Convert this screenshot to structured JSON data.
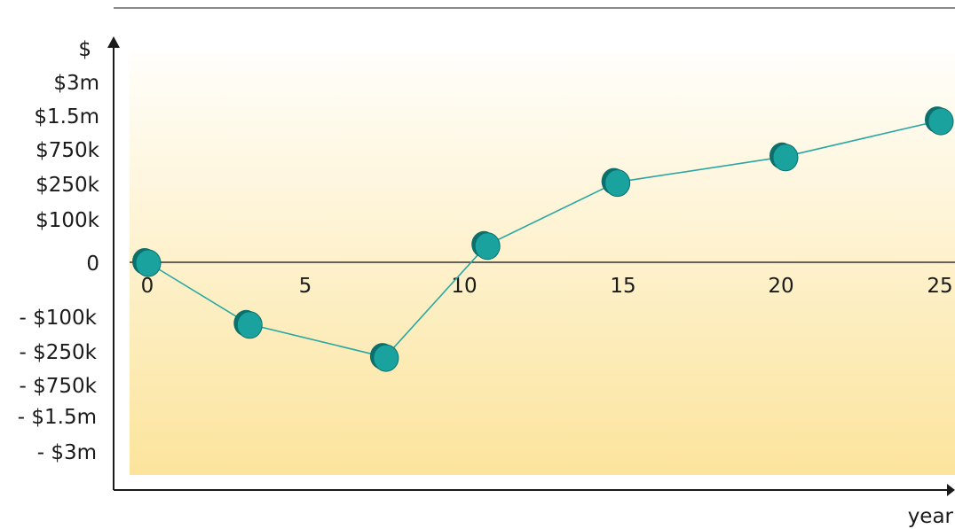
{
  "chart_data": {
    "type": "line",
    "ylabel": "$",
    "xlabel": "year",
    "x_ticks": [
      "0",
      "5",
      "10",
      "15",
      "20",
      "25"
    ],
    "y_ticks_positive": [
      "$3m",
      "$1.5m",
      "$750k",
      "$250k",
      "$100k"
    ],
    "y_tick_zero": "0",
    "y_ticks_negative": [
      "- $100k",
      "- $250k",
      "- $750k",
      "- $1.5m",
      "- $3m"
    ],
    "scale": "symmetric non-linear (monetary bands)",
    "xlim": [
      0,
      25
    ],
    "series": [
      {
        "x": [
          0,
          3.2,
          7.5,
          10.7,
          14.8,
          20.1,
          25.0
        ],
        "y": [
          0,
          -130000,
          -330000,
          40000,
          280000,
          650000,
          1400000
        ]
      }
    ]
  },
  "colors": {
    "line": "#2aa7a4",
    "marker_face": "#1aa39e",
    "marker_edge": "#0d6f6b",
    "bg_top": "#fffefb",
    "bg_bottom": "#fce49c",
    "axis": "#1a1a1a"
  }
}
